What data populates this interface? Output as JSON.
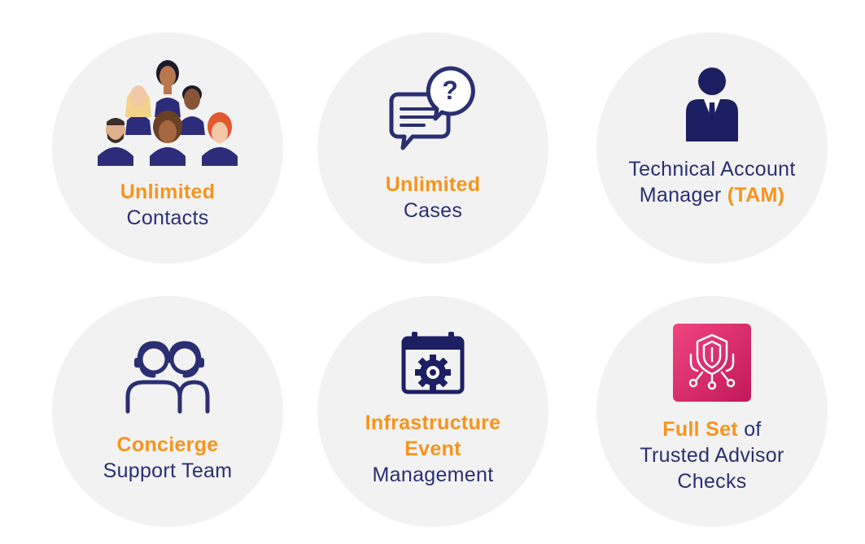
{
  "colors": {
    "circle": "#f2f2f2",
    "text": "#2a2f72",
    "accent": "#f7941d",
    "icon_navy": "#1d1f63",
    "icon_pink": "#e8336e"
  },
  "cards": [
    {
      "icon": "people-group-icon",
      "highlight": "Unlimited",
      "text": "Contacts"
    },
    {
      "icon": "chat-question-icon",
      "highlight": "Unlimited",
      "text": "Cases"
    },
    {
      "icon": "account-manager-icon",
      "line1": "Technical Account",
      "line2_prefix": "Manager ",
      "line2_highlight": "(TAM)"
    },
    {
      "icon": "headset-team-icon",
      "highlight": "Concierge",
      "text": "Support Team"
    },
    {
      "icon": "calendar-gear-icon",
      "highlight_1": "Infrastructure",
      "highlight_2": "Event",
      "text": "Management"
    },
    {
      "icon": "trusted-advisor-icon",
      "highlight": "Full Set",
      "suffix": " of",
      "line2": "Trusted Advisor",
      "line3": "Checks"
    }
  ]
}
